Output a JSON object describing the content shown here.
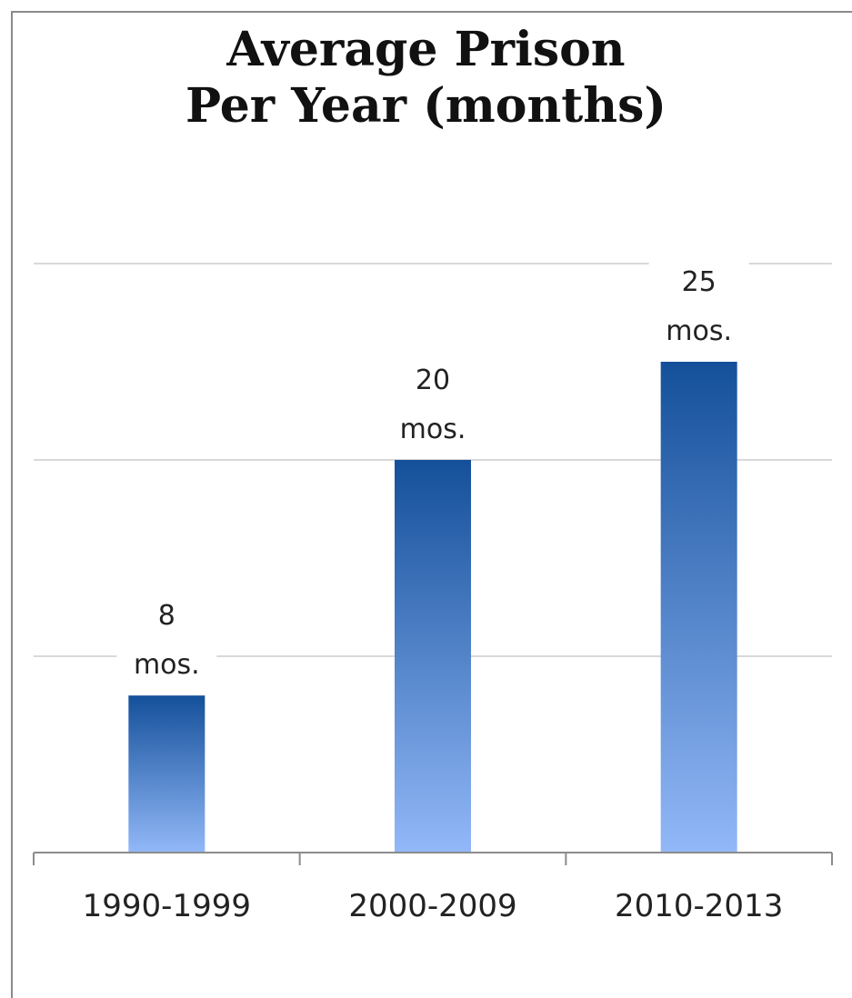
{
  "chart_data": {
    "type": "bar",
    "title_lines": [
      "Average Prison",
      "Per Year (months)"
    ],
    "categories": [
      "1990-1999",
      "2000-2009",
      "2010-2013"
    ],
    "values": [
      8,
      20,
      25
    ],
    "data_labels": [
      {
        "value": "8",
        "unit": "mos."
      },
      {
        "value": "20",
        "unit": "mos."
      },
      {
        "value": "25",
        "unit": "mos."
      }
    ],
    "xlabel": "",
    "ylabel": "",
    "ylim": [
      0,
      30
    ],
    "gridlines_at": [
      10,
      20,
      30
    ],
    "y_tick_labels_shown": false,
    "legend": "none",
    "grid": true,
    "colors": {
      "bar_top": "#14509a",
      "bar_bottom": "#92b8f8",
      "grid": "#d9d9d9",
      "axis": "#8c8c8c"
    }
  }
}
